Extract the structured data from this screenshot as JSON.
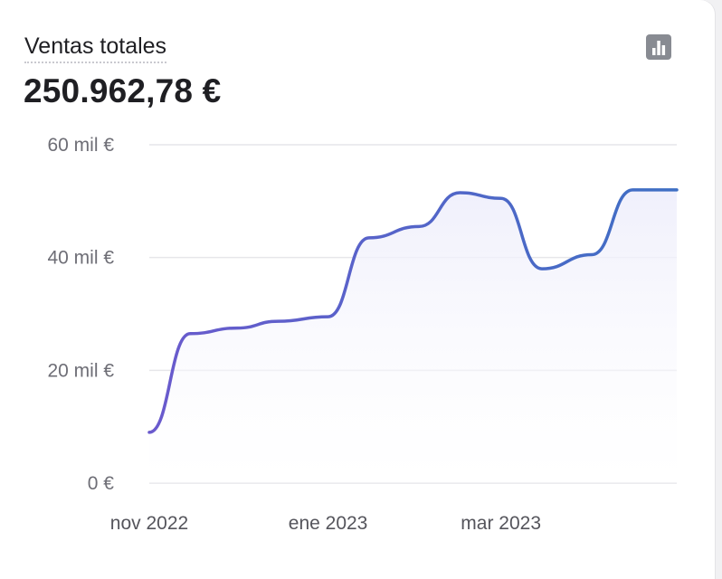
{
  "card": {
    "title": "Ventas totales",
    "total": "250.962,78 €",
    "chart_button_icon": "bar-chart-icon"
  },
  "colors": {
    "line_start": "#6a5acd",
    "line_end": "#3e6fc4",
    "grid": "#e6e6ea",
    "area": "#eeeefb"
  },
  "chart_data": {
    "type": "line",
    "title": "Ventas totales",
    "xlabel": "",
    "ylabel": "",
    "x": [
      "2022-11-01",
      "2022-11-15",
      "2022-12-01",
      "2022-12-15",
      "2023-01-01",
      "2023-01-15",
      "2023-02-01",
      "2023-02-15",
      "2023-03-01",
      "2023-03-15",
      "2023-04-01",
      "2023-04-15"
    ],
    "series": [
      {
        "values": [
          9000,
          26500,
          27500,
          28700,
          29500,
          43500,
          45500,
          51500,
          50500,
          38000,
          40500,
          52000
        ]
      }
    ],
    "ylim": [
      0,
      60000
    ],
    "y_ticks": [
      {
        "value": 0,
        "label": "0 €"
      },
      {
        "value": 20000,
        "label": "20 mil €"
      },
      {
        "value": 40000,
        "label": "40 mil €"
      },
      {
        "value": 60000,
        "label": "60 mil €"
      }
    ],
    "x_ticks": [
      {
        "value": "2022-11-01",
        "label": "nov 2022"
      },
      {
        "value": "2023-01-01",
        "label": "ene 2023"
      },
      {
        "value": "2023-03-01",
        "label": "mar 2023"
      }
    ],
    "grid": true,
    "legend": "none"
  }
}
